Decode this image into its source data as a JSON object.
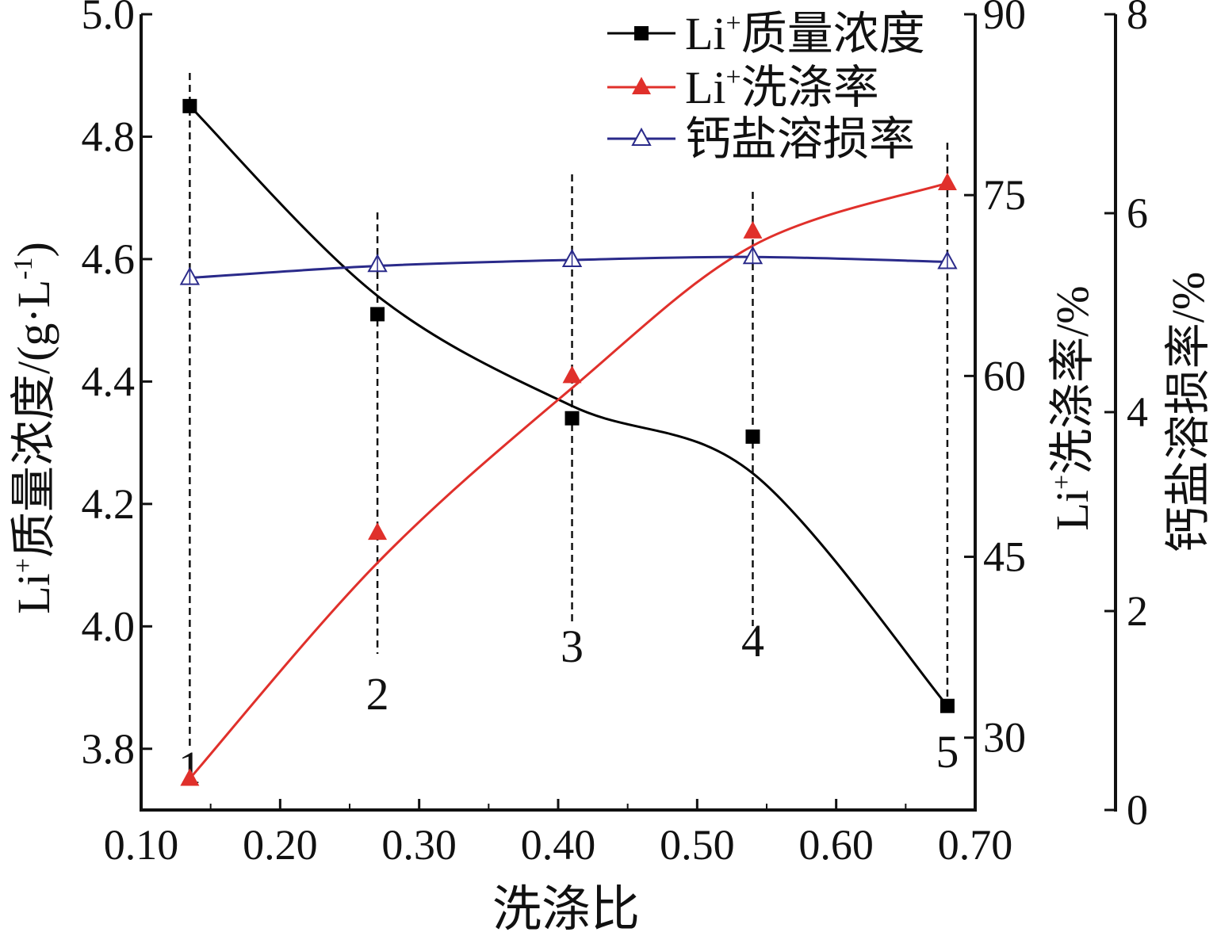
{
  "chart_data": {
    "type": "line",
    "xlabel": "洗涤比",
    "x_ticks": [
      "0.10",
      "0.20",
      "0.30",
      "0.40",
      "0.50",
      "0.60",
      "0.70"
    ],
    "x_tick_values": [
      0.1,
      0.2,
      0.3,
      0.4,
      0.5,
      0.6,
      0.7
    ],
    "xlim": [
      0.1,
      0.7
    ],
    "x": [
      0.135,
      0.27,
      0.41,
      0.54,
      0.68
    ],
    "point_labels": [
      "1",
      "2",
      "3",
      "4",
      "5"
    ],
    "axes": [
      {
        "id": "left",
        "label_main": "Li",
        "label_sup": "+",
        "label_rest": "质量浓度/(g·L",
        "label_unit_sup": "-1",
        "label_close": ")",
        "ylim": [
          3.7,
          5.0
        ],
        "ticks": [
          3.8,
          4.0,
          4.2,
          4.4,
          4.6,
          4.8,
          5.0
        ],
        "tick_labels": [
          "3.8",
          "4.0",
          "4.2",
          "4.4",
          "4.6",
          "4.8",
          "5.0"
        ]
      },
      {
        "id": "right1",
        "label_main": "Li",
        "label_sup": "+",
        "label_rest": "洗涤率/%",
        "ylim": [
          24,
          90
        ],
        "ticks": [
          30,
          45,
          60,
          75,
          90
        ],
        "tick_labels": [
          "30",
          "45",
          "60",
          "75",
          "90"
        ]
      },
      {
        "id": "right2",
        "label_main": "钙盐溶损率/%",
        "ylim": [
          0,
          8
        ],
        "ticks": [
          0,
          2,
          4,
          6,
          8
        ],
        "tick_labels": [
          "0",
          "2",
          "4",
          "6",
          "8"
        ]
      }
    ],
    "series": [
      {
        "name_main": "Li",
        "name_sup": "+",
        "name_rest": "质量浓度",
        "axis": "left",
        "values": [
          4.85,
          4.51,
          4.34,
          4.31,
          3.87
        ],
        "fit": [
          4.85,
          4.54,
          4.36,
          4.25,
          3.87
        ],
        "color": "#000000",
        "marker": "square-filled"
      },
      {
        "name_main": "Li",
        "name_sup": "+",
        "name_rest": "洗涤率",
        "axis": "right1",
        "values": [
          26.6,
          47.0,
          60.0,
          72.0,
          76.0
        ],
        "fit": [
          26.6,
          44.5,
          59.0,
          70.8,
          76.0
        ],
        "color": "#e0302b",
        "marker": "triangle-filled"
      },
      {
        "name_main": "钙盐溶损率",
        "name_sup": "",
        "name_rest": "",
        "axis": "right2",
        "values": [
          5.35,
          5.48,
          5.53,
          5.56,
          5.51
        ],
        "fit": [
          5.35,
          5.47,
          5.53,
          5.56,
          5.51
        ],
        "color": "#2a2a8a",
        "marker": "triangle-open"
      }
    ],
    "grid": false,
    "legend_position": "top-right"
  }
}
